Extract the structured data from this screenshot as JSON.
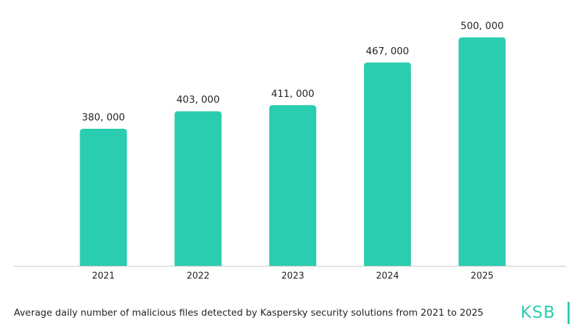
{
  "chart_data": {
    "type": "bar",
    "caption": "Average daily number of malicious files detected by Kaspersky security solutions from 2021 to 2025",
    "logo": "KSB",
    "categories": [
      "2021",
      "2022",
      "2023",
      "2024",
      "2025"
    ],
    "values": [
      380000,
      403000,
      411000,
      467000,
      500000
    ],
    "value_labels": [
      "380, 000",
      "403, 000",
      "411, 000",
      "467, 000",
      "500, 000"
    ],
    "color": "#2bcdb0",
    "ylim": [
      200000,
      520000
    ]
  }
}
